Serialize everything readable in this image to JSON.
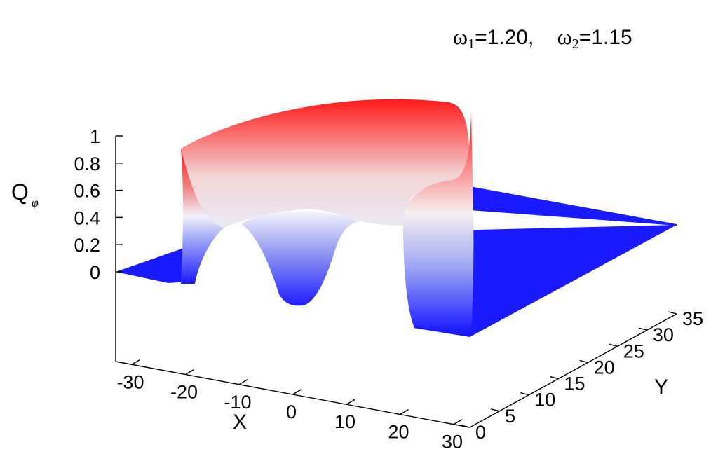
{
  "params": {
    "omega1_symbol": "ω",
    "omega1_sub": "1",
    "omega1_value": "=1.20,",
    "omega2_symbol": "ω",
    "omega2_sub": "2",
    "omega2_value": "=1.15"
  },
  "chart_data": {
    "type": "surface",
    "title": "",
    "xlabel": "X",
    "ylabel": "Y",
    "zlabel_main": "Q",
    "zlabel_sub": "φ",
    "x_ticks": [
      "-30",
      "-20",
      "-10",
      "0",
      "10",
      "20",
      "30"
    ],
    "y_ticks": [
      "0",
      "5",
      "10",
      "15",
      "20",
      "25",
      "30",
      "35"
    ],
    "z_ticks": [
      "0",
      "0.2",
      "0.4",
      "0.6",
      "0.8",
      "1"
    ],
    "xlim": [
      -33,
      33
    ],
    "ylim": [
      0,
      35
    ],
    "zlim": [
      0,
      1
    ],
    "colormap": {
      "low": "#0000ff",
      "mid": "#ffffff",
      "high": "#ff0000"
    },
    "surface": {
      "description_values": {
        "baseline_q": 0,
        "wall_radius": 21,
        "wall_peak_q": 0.95,
        "inner_plateau_q": 0.45,
        "central_dip_x": 0,
        "central_dip_min_q": 0.0
      }
    }
  }
}
